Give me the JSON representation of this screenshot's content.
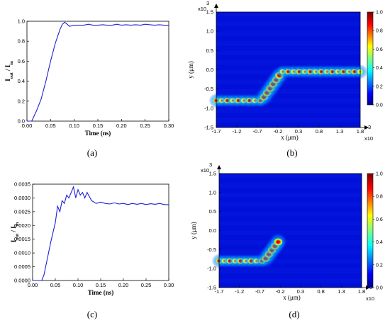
{
  "chart_data": [
    {
      "panel": "a",
      "type": "line",
      "caption": "(a)",
      "xlabel": "Time (ns)",
      "ylabel": "I_out / I_in",
      "xlim": [
        0,
        0.3
      ],
      "ylim": [
        0,
        1.0
      ],
      "xticks": [
        "0.00",
        "0.05",
        "0.10",
        "0.15",
        "0.20",
        "0.25",
        "0.30"
      ],
      "yticks": [
        "0.0",
        "0.2",
        "0.4",
        "0.6",
        "0.8",
        "1.0"
      ],
      "color": "#1f1fd6",
      "x": [
        0.0,
        0.01,
        0.02,
        0.03,
        0.04,
        0.05,
        0.06,
        0.07,
        0.075,
        0.08,
        0.085,
        0.09,
        0.1,
        0.11,
        0.12,
        0.13,
        0.14,
        0.15,
        0.16,
        0.17,
        0.18,
        0.19,
        0.2,
        0.21,
        0.22,
        0.23,
        0.24,
        0.25,
        0.26,
        0.27,
        0.28,
        0.29,
        0.3
      ],
      "y": [
        0.0,
        0.0,
        0.1,
        0.22,
        0.4,
        0.6,
        0.78,
        0.92,
        0.97,
        0.99,
        0.97,
        0.95,
        0.96,
        0.96,
        0.96,
        0.97,
        0.96,
        0.96,
        0.965,
        0.96,
        0.96,
        0.97,
        0.96,
        0.965,
        0.96,
        0.965,
        0.96,
        0.97,
        0.965,
        0.96,
        0.965,
        0.96,
        0.96
      ]
    },
    {
      "panel": "b",
      "type": "heatmap",
      "caption": "(b)",
      "xlabel": "x (μm)",
      "ylabel": "y (μm)",
      "exponent": "x10",
      "exponent_power": "3",
      "xlim": [
        -1.7,
        1.8
      ],
      "ylim": [
        -1.5,
        1.5
      ],
      "xticks": [
        "-1.7",
        "-1.2",
        "-0.7",
        "-0.2",
        "0.3",
        "0.8",
        "1.3",
        "1.8"
      ],
      "yticks": [
        "1.5",
        "1.0",
        "0.5",
        "0.0",
        "-0.5",
        "-1.0",
        "-1.5"
      ],
      "colorbar_ticks": [
        "1.0",
        "0.8",
        "0.6",
        "0.4",
        "0.2",
        "0.0"
      ],
      "path": [
        [
          -1.7,
          -0.8
        ],
        [
          -0.6,
          -0.8
        ],
        [
          -0.1,
          -0.05
        ],
        [
          1.8,
          -0.05
        ]
      ]
    },
    {
      "panel": "c",
      "type": "line",
      "caption": "(c)",
      "xlabel": "Time (ns)",
      "ylabel": "I_out / I_in",
      "xlim": [
        0,
        0.3
      ],
      "ylim": [
        0,
        0.0035
      ],
      "xticks": [
        "0.00",
        "0.05",
        "0.10",
        "0.15",
        "0.20",
        "0.25",
        "0.30"
      ],
      "yticks": [
        "0.0035",
        "0.0030",
        "0.0025",
        "0.0020",
        "0.0015",
        "0.0010",
        "0.0005",
        "0.0000"
      ],
      "color": "#1f1fd6",
      "x": [
        0.0,
        0.02,
        0.025,
        0.03,
        0.04,
        0.05,
        0.055,
        0.06,
        0.065,
        0.07,
        0.075,
        0.08,
        0.085,
        0.09,
        0.095,
        0.1,
        0.105,
        0.11,
        0.115,
        0.12,
        0.13,
        0.14,
        0.15,
        0.16,
        0.17,
        0.18,
        0.19,
        0.2,
        0.21,
        0.22,
        0.23,
        0.24,
        0.25,
        0.26,
        0.27,
        0.28,
        0.29,
        0.3
      ],
      "y": [
        0.0,
        0.0,
        0.0002,
        0.0006,
        0.0014,
        0.0021,
        0.0027,
        0.0025,
        0.0029,
        0.0028,
        0.0031,
        0.003,
        0.0032,
        0.0034,
        0.003,
        0.0033,
        0.0031,
        0.0032,
        0.003,
        0.0032,
        0.0029,
        0.0028,
        0.00285,
        0.0028,
        0.00278,
        0.00282,
        0.00278,
        0.0028,
        0.00276,
        0.0028,
        0.00277,
        0.0028,
        0.00276,
        0.00279,
        0.00277,
        0.0028,
        0.00276,
        0.00275
      ]
    },
    {
      "panel": "d",
      "type": "heatmap",
      "caption": "(d)",
      "xlabel": "x (μm)",
      "ylabel": "y (μm)",
      "exponent": "x10",
      "exponent_power": "3",
      "xlim": [
        -1.7,
        1.8
      ],
      "ylim": [
        -1.5,
        1.5
      ],
      "xticks": [
        "-1.7",
        "-1.2",
        "-0.7",
        "-0.2",
        "0.3",
        "0.8",
        "1.3",
        "1.8"
      ],
      "yticks": [
        "1.5",
        "1.0",
        "0.5",
        "0.0",
        "-0.5",
        "-1.0",
        "-1.5"
      ],
      "colorbar_ticks": [
        "1.0",
        "0.8",
        "0.6",
        "0.4",
        "0.2",
        "0.0"
      ],
      "path": [
        [
          -1.7,
          -0.8
        ],
        [
          -0.6,
          -0.8
        ],
        [
          -0.25,
          -0.3
        ]
      ]
    }
  ]
}
